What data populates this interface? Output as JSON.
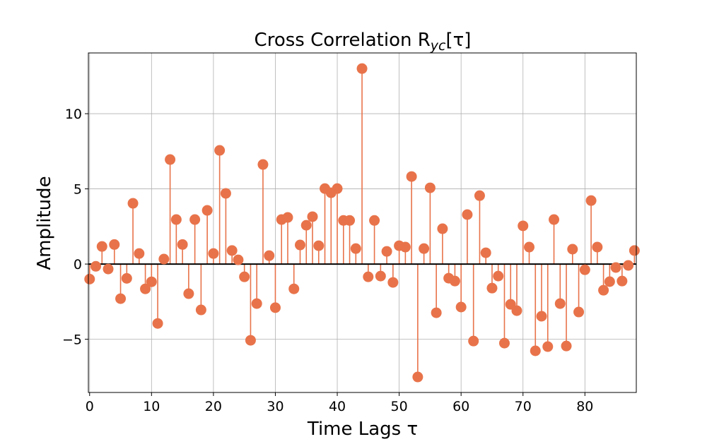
{
  "chart_data": {
    "type": "stem",
    "title": "Cross Correlation R",
    "title_sub": "yc",
    "title_suffix": "[τ]",
    "xlabel": "Time Lags τ",
    "ylabel": "Amplitude",
    "xlim": [
      -0.2,
      88.3
    ],
    "ylim": [
      -8.54,
      14.04
    ],
    "xticks": [
      0,
      10,
      20,
      30,
      40,
      50,
      60,
      70,
      80
    ],
    "yticks": [
      -5,
      0,
      5,
      10
    ],
    "ytick_labels": [
      "−5",
      "0",
      "5",
      "10"
    ],
    "grid": true,
    "color": "#e8734a",
    "baseline_color": "#000000",
    "x": [
      0,
      1,
      2,
      3,
      4,
      5,
      6,
      7,
      8,
      9,
      10,
      11,
      12,
      13,
      14,
      15,
      16,
      17,
      18,
      19,
      20,
      21,
      22,
      23,
      24,
      25,
      26,
      27,
      28,
      29,
      30,
      31,
      32,
      33,
      34,
      35,
      36,
      37,
      38,
      39,
      40,
      41,
      42,
      43,
      44,
      45,
      46,
      47,
      48,
      49,
      50,
      51,
      52,
      53,
      54,
      55,
      56,
      57,
      58,
      59,
      60,
      61,
      62,
      63,
      64,
      65,
      66,
      67,
      68,
      69,
      70,
      71,
      72,
      73,
      74,
      75,
      76,
      77,
      78,
      79,
      80,
      81,
      82,
      83,
      84,
      85,
      86,
      87,
      88
    ],
    "values": [
      -1.0,
      -0.15,
      1.17,
      -0.33,
      1.3,
      -2.3,
      -0.95,
      4.04,
      0.7,
      -1.65,
      -1.18,
      -3.95,
      0.33,
      6.95,
      2.96,
      1.3,
      -1.97,
      2.96,
      -3.05,
      3.57,
      0.7,
      7.56,
      4.7,
      0.9,
      0.28,
      -0.85,
      -5.07,
      -2.63,
      6.62,
      0.56,
      -2.9,
      2.96,
      3.1,
      -1.65,
      1.27,
      2.58,
      3.15,
      1.22,
      5.02,
      4.74,
      5.02,
      2.9,
      2.9,
      1.03,
      13.0,
      -0.85,
      2.9,
      -0.8,
      0.84,
      -1.22,
      1.22,
      1.13,
      5.82,
      -7.51,
      1.03,
      5.07,
      -3.24,
      2.35,
      -0.94,
      -1.13,
      -2.86,
      3.29,
      -5.12,
      4.55,
      0.75,
      -1.6,
      -0.8,
      -5.26,
      -2.68,
      -3.1,
      2.54,
      1.13,
      -5.77,
      -3.47,
      -5.49,
      2.96,
      -2.63,
      -5.45,
      0.99,
      -3.19,
      -0.38,
      4.22,
      1.13,
      -1.74,
      -1.17,
      -0.23,
      -1.13,
      -0.09,
      0.9
    ]
  }
}
